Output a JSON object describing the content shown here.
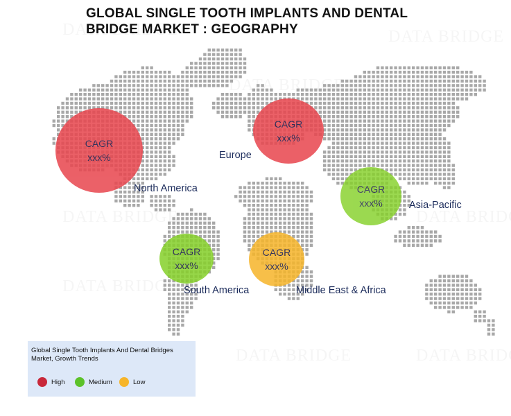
{
  "title_line1": "GLOBAL SINGLE TOOTH IMPLANTS AND DENTAL",
  "title_line2": "BRIDGE MARKET : GEOGRAPHY",
  "watermark": "DATA BRIDGE",
  "colors": {
    "high": "#e8474f",
    "medium": "#86d12a",
    "low": "#f6b52a",
    "map_dots": "#a8a8a8"
  },
  "regions": [
    {
      "name": "North America",
      "growth": "high",
      "cagr_label": "CAGR",
      "cagr_value": "xxx%"
    },
    {
      "name": "Europe",
      "growth": "high",
      "cagr_label": "CAGR",
      "cagr_value": "xxx%"
    },
    {
      "name": "Asia-Pacific",
      "growth": "medium",
      "cagr_label": "CAGR",
      "cagr_value": "xxx%"
    },
    {
      "name": "South America",
      "growth": "medium",
      "cagr_label": "CAGR",
      "cagr_value": "xxx%"
    },
    {
      "name": "Middle East & Africa",
      "growth": "low",
      "cagr_label": "CAGR",
      "cagr_value": "xxx%"
    }
  ],
  "legend": {
    "title": "Global Single Tooth Implants And Dental Bridges Market, Growth Trends",
    "items": [
      {
        "label": "High",
        "color": "#e8474f"
      },
      {
        "label": "Medium",
        "color": "#86d12a"
      },
      {
        "label": "Low",
        "color": "#f6b52a"
      }
    ]
  }
}
